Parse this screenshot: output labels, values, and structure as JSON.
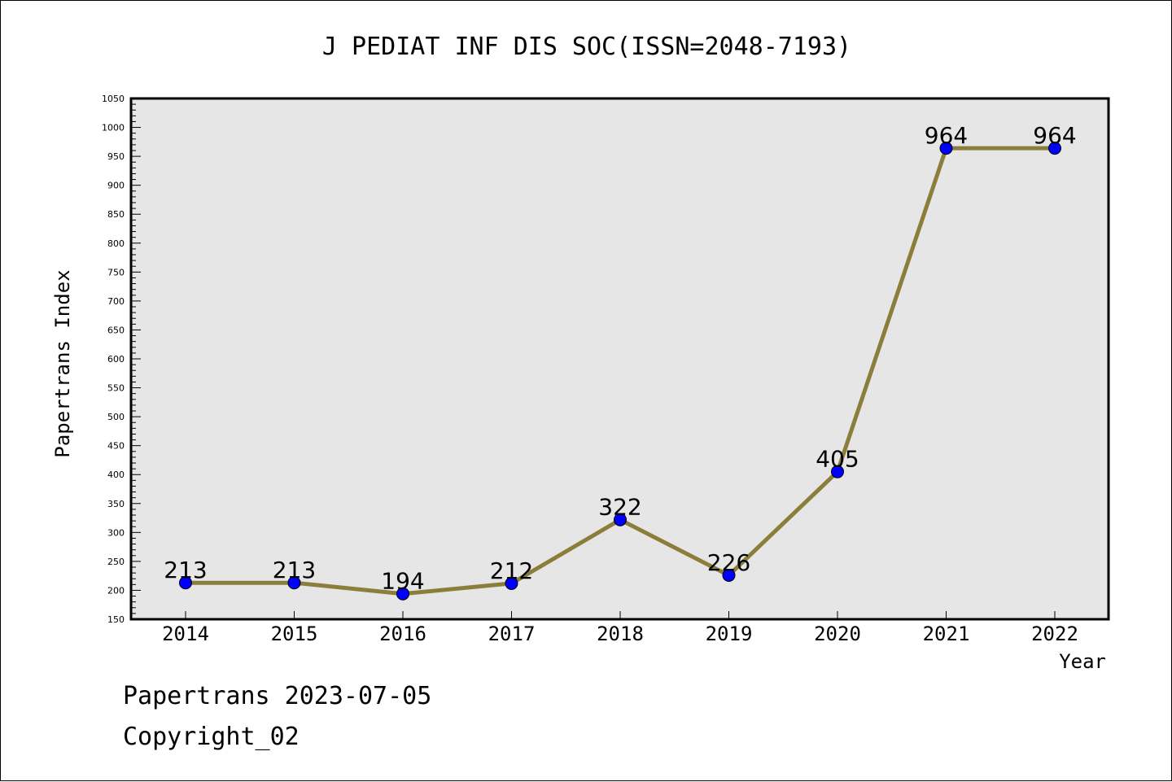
{
  "chart_data": {
    "type": "line",
    "title": "J PEDIAT INF DIS SOC(ISSN=2048-7193)",
    "xlabel": "Year",
    "ylabel": "Papertrans Index",
    "categories": [
      "2014",
      "2015",
      "2016",
      "2017",
      "2018",
      "2019",
      "2020",
      "2021",
      "2022"
    ],
    "series": [
      {
        "values": [
          213,
          213,
          194,
          212,
          322,
          226,
          405,
          964,
          964
        ]
      }
    ],
    "data_labels": [
      "213",
      "213",
      "194",
      "212",
      "322",
      "226",
      "405",
      "964",
      "964"
    ],
    "ylim": [
      150,
      1050
    ],
    "ytick_labels": [
      "150",
      "200",
      "250",
      "300",
      "350",
      "400",
      "450",
      "500",
      "550",
      "600",
      "650",
      "700",
      "750",
      "800",
      "850",
      "900",
      "950",
      "1000",
      "1050"
    ],
    "grid": false,
    "legend": "none",
    "colors": {
      "line": "#8B7D3A",
      "marker_fill": "#0000FF",
      "plot_background": "#E6E6E6"
    }
  },
  "footer": {
    "line1": "Papertrans 2023-07-05",
    "line2": "Copyright_02"
  }
}
